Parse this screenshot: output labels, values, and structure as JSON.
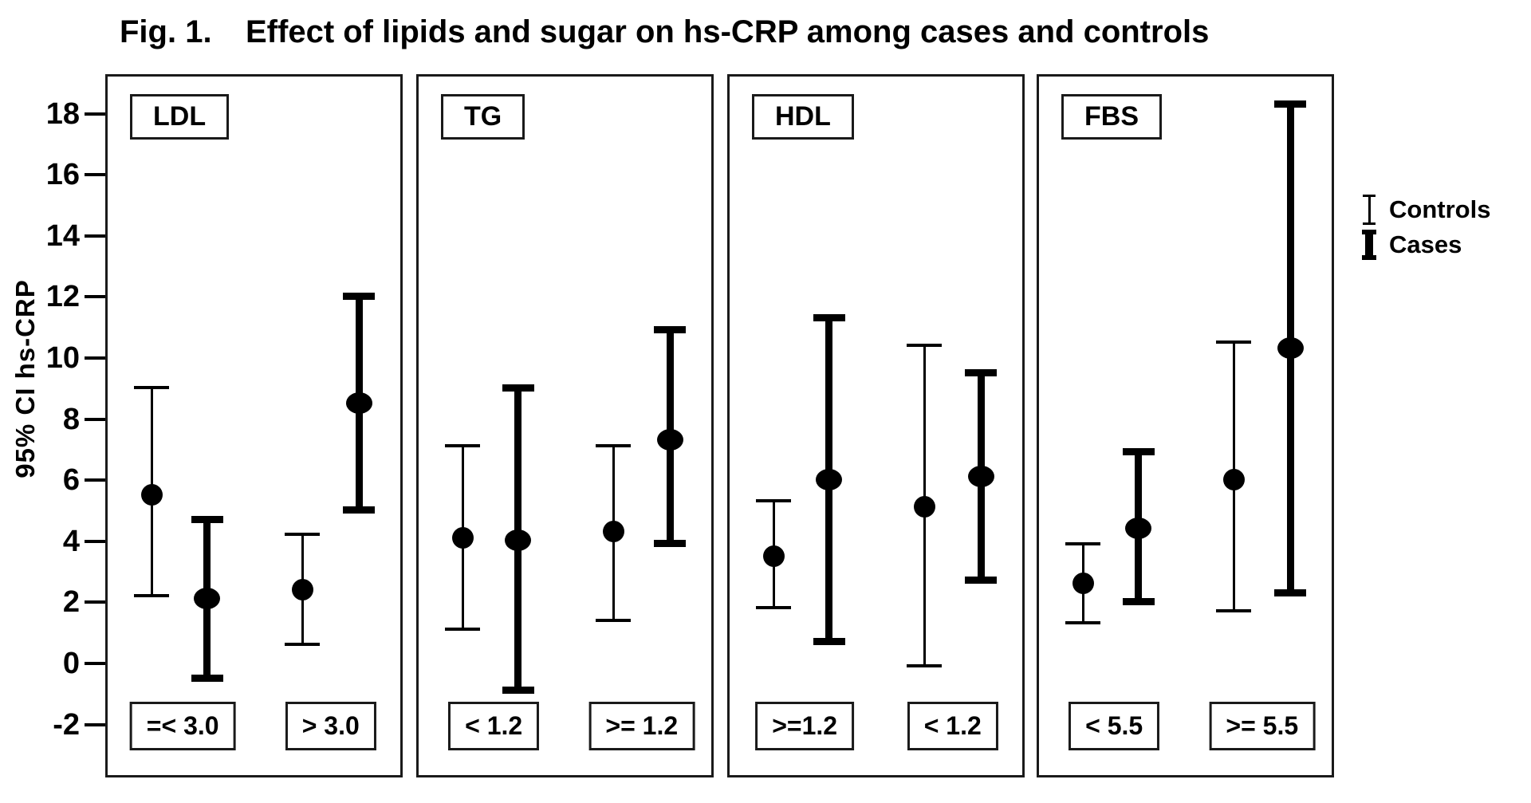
{
  "figure": {
    "fig_label": "Fig. 1.",
    "title": "Effect of lipids and sugar on hs-CRP among cases and controls",
    "y_axis_label": "95% CI hs-CRP"
  },
  "legend": {
    "items": [
      {
        "label": "Controls",
        "style": "thin"
      },
      {
        "label": "Cases",
        "style": "thick"
      }
    ]
  },
  "colors": {
    "foreground": "#000000",
    "background": "#ffffff"
  },
  "chart_data": {
    "type": "errorbar",
    "title": "Effect of lipids and sugar on hs-CRP among cases and controls",
    "ylabel": "95% CI hs-CRP",
    "y_ticks": [
      18,
      16,
      14,
      12,
      10,
      8,
      6,
      4,
      2,
      0,
      -2
    ],
    "ylim": [
      -3.7,
      19.3
    ],
    "grid": false,
    "series_names": [
      "Controls",
      "Cases"
    ],
    "panels": [
      {
        "name": "LDL",
        "groups": [
          {
            "label": "=< 3.0",
            "controls": {
              "mean": 5.6,
              "lower": 2.3,
              "upper": 9.1
            },
            "cases": {
              "mean": 2.2,
              "lower": -0.4,
              "upper": 4.8
            }
          },
          {
            "label": "> 3.0",
            "controls": {
              "mean": 2.5,
              "lower": 0.7,
              "upper": 4.3
            },
            "cases": {
              "mean": 8.6,
              "lower": 5.1,
              "upper": 12.1
            }
          }
        ]
      },
      {
        "name": "TG",
        "groups": [
          {
            "label": "< 1.2",
            "controls": {
              "mean": 4.2,
              "lower": 1.2,
              "upper": 7.2
            },
            "cases": {
              "mean": 4.1,
              "lower": -0.8,
              "upper": 9.1
            }
          },
          {
            "label": ">= 1.2",
            "controls": {
              "mean": 4.4,
              "lower": 1.5,
              "upper": 7.2
            },
            "cases": {
              "mean": 7.4,
              "lower": 4.0,
              "upper": 11.0
            }
          }
        ]
      },
      {
        "name": "HDL",
        "groups": [
          {
            "label": ">=1.2",
            "controls": {
              "mean": 3.6,
              "lower": 1.9,
              "upper": 5.4
            },
            "cases": {
              "mean": 6.1,
              "lower": 0.8,
              "upper": 11.4
            }
          },
          {
            "label": "< 1.2",
            "controls": {
              "mean": 5.2,
              "lower": 0.0,
              "upper": 10.5
            },
            "cases": {
              "mean": 6.2,
              "lower": 2.8,
              "upper": 9.6
            }
          }
        ]
      },
      {
        "name": "FBS",
        "groups": [
          {
            "label": "< 5.5",
            "controls": {
              "mean": 2.7,
              "lower": 1.4,
              "upper": 4.0
            },
            "cases": {
              "mean": 4.5,
              "lower": 2.1,
              "upper": 7.0
            }
          },
          {
            "label": ">= 5.5",
            "controls": {
              "mean": 6.1,
              "lower": 1.8,
              "upper": 10.6
            },
            "cases": {
              "mean": 10.4,
              "lower": 2.4,
              "upper": 18.4
            }
          }
        ]
      }
    ]
  }
}
